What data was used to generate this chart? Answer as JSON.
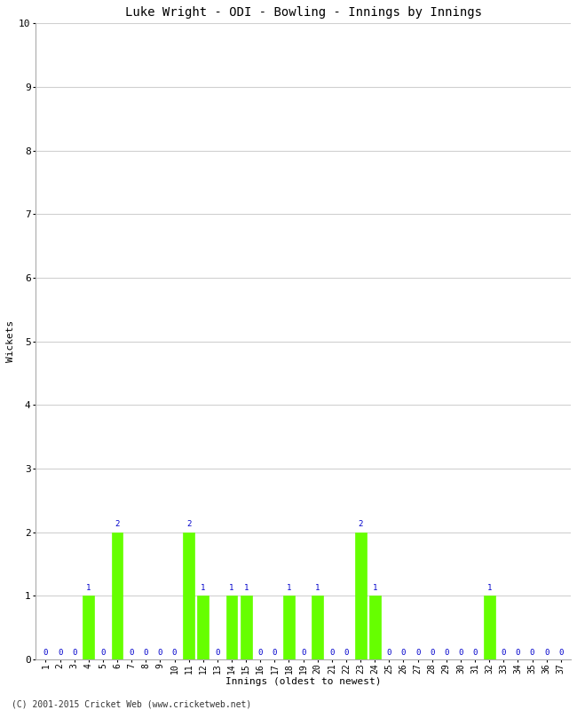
{
  "title": "Luke Wright - ODI - Bowling - Innings by Innings",
  "xlabel": "Innings (oldest to newest)",
  "ylabel": "Wickets",
  "ylim": [
    0,
    10
  ],
  "yticks": [
    0,
    1,
    2,
    3,
    4,
    5,
    6,
    7,
    8,
    9,
    10
  ],
  "innings": [
    1,
    2,
    3,
    4,
    5,
    6,
    7,
    8,
    9,
    10,
    11,
    12,
    13,
    14,
    15,
    16,
    17,
    18,
    19,
    20,
    21,
    22,
    23,
    24,
    25,
    26,
    27,
    28,
    29,
    30,
    31,
    32,
    33,
    34,
    35,
    36,
    37
  ],
  "wickets": [
    0,
    0,
    0,
    1,
    0,
    2,
    0,
    0,
    0,
    0,
    2,
    1,
    0,
    1,
    1,
    0,
    0,
    1,
    0,
    1,
    0,
    0,
    2,
    1,
    0,
    0,
    0,
    0,
    0,
    0,
    0,
    1,
    0,
    0,
    0,
    0,
    0
  ],
  "bar_color": "#66ff00",
  "label_color": "#0000cc",
  "background_color": "#ffffff",
  "grid_color": "#d0d0d0",
  "footer": "(C) 2001-2015 Cricket Web (www.cricketweb.net)"
}
